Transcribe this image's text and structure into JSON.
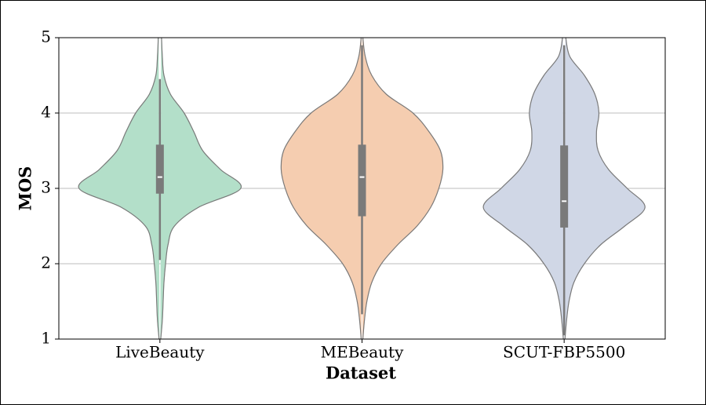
{
  "chart_data": {
    "type": "violin",
    "x_label": "Dataset",
    "y_label": "MOS",
    "categories": [
      "LiveBeauty",
      "MEBeauty",
      "SCUT-FBP5500"
    ],
    "ylim": [
      1,
      5
    ],
    "yticks": [
      1,
      2,
      3,
      4,
      5
    ],
    "grid": true,
    "density_y": [
      1.0,
      1.25,
      1.5,
      1.75,
      2.0,
      2.25,
      2.5,
      2.75,
      3.0,
      3.25,
      3.5,
      3.75,
      4.0,
      4.25,
      4.5,
      4.75,
      5.0
    ],
    "violins": [
      {
        "color": "#b3dfc9",
        "density": [
          0.01,
          0.03,
          0.04,
          0.05,
          0.07,
          0.1,
          0.18,
          0.48,
          1.0,
          0.75,
          0.53,
          0.42,
          0.3,
          0.13,
          0.05,
          0.03,
          0.02
        ],
        "q1": 2.93,
        "median": 3.15,
        "q3": 3.58,
        "whisker_low": 2.05,
        "whisker_high": 4.45
      },
      {
        "color": "#f5cdb0",
        "density": [
          0.01,
          0.03,
          0.06,
          0.12,
          0.24,
          0.44,
          0.68,
          0.85,
          0.95,
          1.0,
          0.97,
          0.83,
          0.63,
          0.3,
          0.12,
          0.04,
          0.01
        ],
        "q1": 2.63,
        "median": 3.15,
        "q3": 3.58,
        "whisker_low": 1.33,
        "whisker_high": 4.9
      },
      {
        "color": "#d0d7e6",
        "density": [
          0.01,
          0.03,
          0.06,
          0.12,
          0.25,
          0.45,
          0.75,
          1.0,
          0.78,
          0.55,
          0.42,
          0.4,
          0.43,
          0.38,
          0.25,
          0.07,
          0.02
        ],
        "q1": 2.48,
        "median": 2.83,
        "q3": 3.57,
        "whisker_low": 1.05,
        "whisker_high": 4.9
      }
    ]
  }
}
